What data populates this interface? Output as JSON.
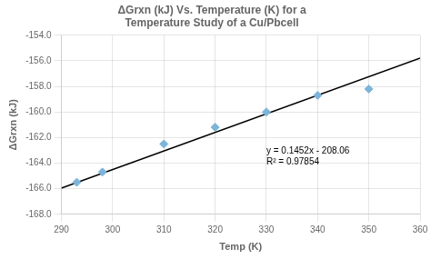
{
  "chart_data": {
    "type": "scatter",
    "title": [
      "ΔGrxn (kJ) Vs. Temperature (K) for a",
      "Temperature Study of a Cu/Pbcell"
    ],
    "x_label": "Temp (K)",
    "y_label": "ΔGrxn (kJ)",
    "series": [
      {
        "type": "scatter",
        "marker": "diamond",
        "color": "#7EB4D9",
        "x": [
          293,
          298,
          310,
          320,
          330,
          340,
          350
        ],
        "values": [
          -165.5,
          -164.7,
          -162.5,
          -161.2,
          -160.0,
          -158.7,
          -158.2
        ]
      },
      {
        "type": "line",
        "line_style": "solid",
        "color": "#000000",
        "x": [
          290,
          360
        ],
        "values": [
          -165.952,
          -155.788
        ]
      }
    ],
    "annotations": [
      {
        "text": [
          "y = 0.1452x - 208.06",
          "R² = 0.97854"
        ],
        "x": 330,
        "y": -163.5
      }
    ],
    "xlim": [
      290,
      360
    ],
    "xticks": [
      290,
      300,
      310,
      320,
      330,
      340,
      350,
      360
    ],
    "ylim": [
      -168.0,
      -154.0
    ],
    "yticks": [
      {
        "value": -168.0,
        "label": "-168.0"
      },
      {
        "value": -166.0,
        "label": "-166.0"
      },
      {
        "value": -164.0,
        "label": "-164.0"
      },
      {
        "value": -162.0,
        "label": "-162.0"
      },
      {
        "value": -160.0,
        "label": "-160.0"
      },
      {
        "value": -158.0,
        "label": "-158.0"
      },
      {
        "value": -156.0,
        "label": "-156.0"
      },
      {
        "value": -154.0,
        "label": "-154.0"
      }
    ],
    "grid": true
  }
}
